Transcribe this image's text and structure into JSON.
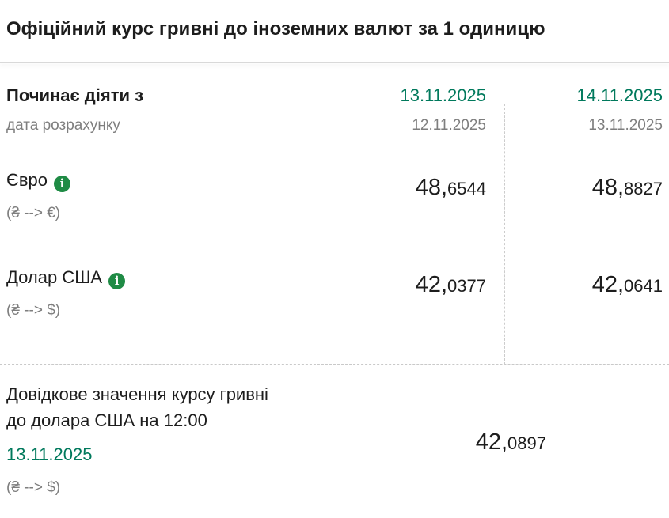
{
  "page": {
    "title": "Офіційний курс гривні до іноземних валют за 1 одиницю"
  },
  "table": {
    "header": {
      "label": "Починає діяти з",
      "sublabel": "дата розрахунку",
      "columns": [
        {
          "effective_date": "13.11.2025",
          "calc_date": "12.11.2025"
        },
        {
          "effective_date": "14.11.2025",
          "calc_date": "13.11.2025"
        }
      ]
    },
    "rows": [
      {
        "currency": "Євро",
        "pair": "(₴ --> €)",
        "values": [
          {
            "int": "48,",
            "frac": "6544"
          },
          {
            "int": "48,",
            "frac": "8827"
          }
        ]
      },
      {
        "currency": "Долар США",
        "pair": "(₴ --> $)",
        "values": [
          {
            "int": "42,",
            "frac": "0377"
          },
          {
            "int": "42,",
            "frac": "0641"
          }
        ]
      }
    ]
  },
  "reference": {
    "title_line1": "Довідкове значення курсу гривні",
    "title_line2": "до долара США на 12:00",
    "date": "13.11.2025",
    "value_int": "42,",
    "value_frac": "0897",
    "pair": "(₴ --> $)"
  },
  "icons": {
    "info_glyph": "i"
  },
  "colors": {
    "green_date": "#00795c",
    "green_icon": "#1f8b45",
    "gray_text": "#7e7e7e",
    "dark_text": "#1d1d1d",
    "divider": "#d9d9d9",
    "dashed_divider": "#c9c9c9"
  }
}
